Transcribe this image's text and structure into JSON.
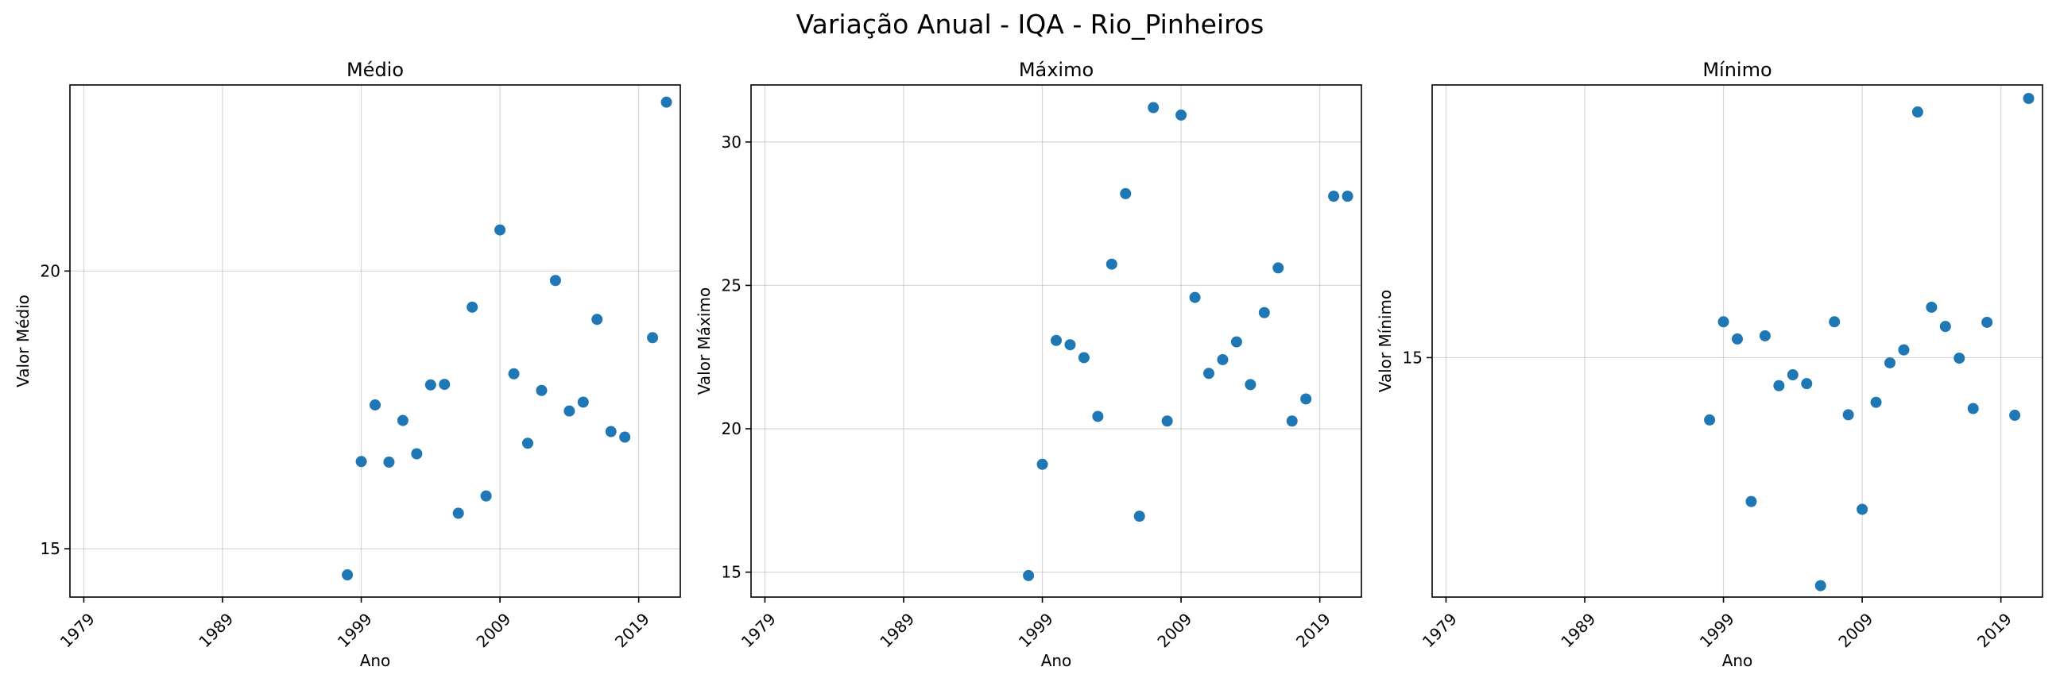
{
  "suptitle": "Variação Anual - IQA - Rio_Pinheiros",
  "point_color": "#1f77b4",
  "chart_data": [
    {
      "type": "scatter",
      "title": "Médio",
      "xlabel": "Ano",
      "ylabel": "Valor Médio",
      "xlim": [
        1978,
        2022
      ],
      "ylim": [
        14.13,
        23.35
      ],
      "grid": true,
      "xticks": [
        1979,
        1989,
        1999,
        2009,
        2019
      ],
      "yticks": [
        15,
        20
      ],
      "x": [
        1998,
        1999,
        2000,
        2001,
        2002,
        2003,
        2004,
        2005,
        2006,
        2007,
        2008,
        2009,
        2010,
        2011,
        2012,
        2013,
        2014,
        2015,
        2016,
        2017,
        2018,
        2020,
        2021
      ],
      "y": [
        14.53,
        16.57,
        17.59,
        16.56,
        17.31,
        16.71,
        17.95,
        17.96,
        15.64,
        19.35,
        15.95,
        20.74,
        18.15,
        16.9,
        17.85,
        19.83,
        17.48,
        17.64,
        19.13,
        17.11,
        17.01,
        18.8,
        23.04
      ]
    },
    {
      "type": "scatter",
      "title": "Máximo",
      "xlabel": "Ano",
      "ylabel": "Valor Máximo",
      "xlim": [
        1978,
        2022
      ],
      "ylim": [
        14.13,
        31.99
      ],
      "grid": true,
      "xticks": [
        1979,
        1989,
        1999,
        2009,
        2019
      ],
      "yticks": [
        15,
        20,
        25,
        30
      ],
      "x": [
        1998,
        1999,
        2000,
        2001,
        2002,
        2003,
        2004,
        2005,
        2006,
        2007,
        2008,
        2009,
        2010,
        2011,
        2012,
        2013,
        2014,
        2015,
        2016,
        2017,
        2018,
        2020,
        2021
      ],
      "y": [
        14.88,
        18.76,
        23.08,
        22.93,
        22.48,
        20.43,
        25.74,
        28.2,
        16.95,
        31.2,
        20.27,
        30.94,
        24.58,
        21.93,
        22.41,
        23.03,
        21.54,
        24.05,
        25.61,
        20.27,
        21.04,
        28.11,
        28.11
      ]
    },
    {
      "type": "scatter",
      "title": "Mínimo",
      "xlabel": "Ano",
      "ylabel": "Valor Mínimo",
      "xlim": [
        1978,
        2022
      ],
      "ylim": [
        10.39,
        20.25
      ],
      "grid": true,
      "xticks": [
        1979,
        1989,
        1999,
        2009,
        2019
      ],
      "yticks": [
        15
      ],
      "x": [
        1998,
        1999,
        2000,
        2001,
        2002,
        2003,
        2004,
        2005,
        2006,
        2007,
        2008,
        2009,
        2010,
        2011,
        2012,
        2013,
        2014,
        2015,
        2016,
        2017,
        2018,
        2020,
        2021
      ],
      "y": [
        13.8,
        15.69,
        15.36,
        12.23,
        15.42,
        14.46,
        14.67,
        14.5,
        10.61,
        15.69,
        13.9,
        12.08,
        14.14,
        14.9,
        15.15,
        19.73,
        15.97,
        15.6,
        14.99,
        14.02,
        15.68,
        13.89,
        19.99
      ]
    }
  ]
}
